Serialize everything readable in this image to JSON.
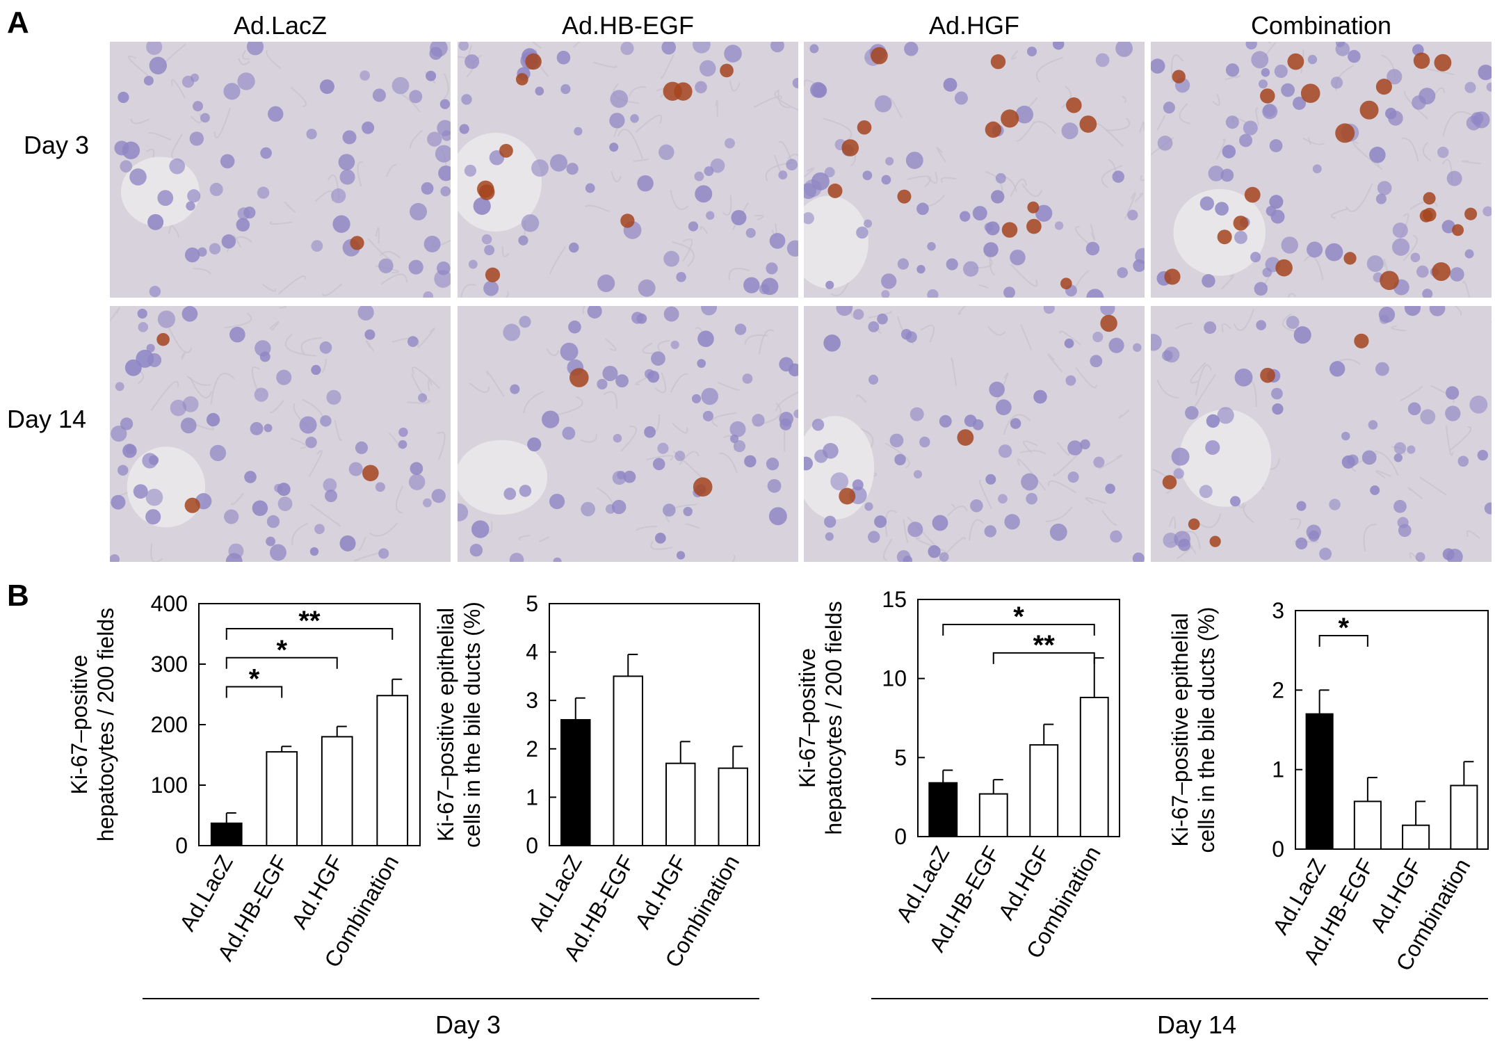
{
  "panel_a": {
    "letter": "A",
    "columns": [
      "Ad.LacZ",
      "Ad.HB-EGF",
      "Ad.HGF",
      "Combination"
    ],
    "rows": [
      "Day 3",
      "Day 14"
    ],
    "images": [
      {
        "name": "micrograph-day3-ad-lacz",
        "brown_nuclei": 1
      },
      {
        "name": "micrograph-day3-ad-hb-egf",
        "brown_nuclei": 10
      },
      {
        "name": "micrograph-day3-ad-hgf",
        "brown_nuclei": 14
      },
      {
        "name": "micrograph-day3-combination",
        "brown_nuclei": 22
      },
      {
        "name": "micrograph-day14-ad-lacz",
        "brown_nuclei": 3
      },
      {
        "name": "micrograph-day14-ad-hb-egf",
        "brown_nuclei": 2
      },
      {
        "name": "micrograph-day14-ad-hgf",
        "brown_nuclei": 3
      },
      {
        "name": "micrograph-day14-combination",
        "brown_nuclei": 5
      }
    ],
    "colors": {
      "tissue": "#d8d2dc",
      "hematoxylin": "#8f86c4",
      "dab": "#a4451e"
    }
  },
  "panel_b": {
    "letter": "B",
    "group_labels": [
      "Day 3",
      "Day 14"
    ]
  },
  "chart_data": [
    {
      "type": "bar",
      "categories": [
        "Ad.LacZ",
        "Ad.HB-EGF",
        "Ad.HGF",
        "Combination"
      ],
      "ylabel_lines": [
        "Ki-67–positive",
        "hepatocytes / 200 fields"
      ],
      "ylim": [
        0,
        400
      ],
      "yticks": [
        "0",
        "100",
        "200",
        "300",
        "400"
      ],
      "values": [
        37,
        155,
        180,
        248
      ],
      "errors": [
        17,
        9,
        17,
        27
      ],
      "fills": [
        "#000000",
        "#ffffff",
        "#ffffff",
        "#ffffff"
      ],
      "significance": [
        {
          "from": 0,
          "to": 1,
          "label": "*",
          "level": 1
        },
        {
          "from": 0,
          "to": 2,
          "label": "*",
          "level": 2
        },
        {
          "from": 0,
          "to": 3,
          "label": "**",
          "level": 3
        }
      ]
    },
    {
      "type": "bar",
      "categories": [
        "Ad.LacZ",
        "Ad.HB-EGF",
        "Ad.HGF",
        "Combination"
      ],
      "ylabel_lines": [
        "Ki-67–positive epithelial",
        "cells in the bile ducts (%)"
      ],
      "ylim": [
        0,
        5
      ],
      "yticks": [
        "0",
        "1",
        "2",
        "3",
        "4",
        "5"
      ],
      "values": [
        2.6,
        3.5,
        1.7,
        1.6
      ],
      "errors": [
        0.45,
        0.45,
        0.45,
        0.45
      ],
      "fills": [
        "#000000",
        "#ffffff",
        "#ffffff",
        "#ffffff"
      ],
      "significance": []
    },
    {
      "type": "bar",
      "categories": [
        "Ad.LacZ",
        "Ad.HB-EGF",
        "Ad.HGF",
        "Combination"
      ],
      "ylabel_lines": [
        "Ki-67–positive",
        "hepatocytes / 200 fields"
      ],
      "ylim": [
        0,
        15
      ],
      "yticks": [
        "0",
        "5",
        "10",
        "15"
      ],
      "values": [
        3.4,
        2.7,
        5.8,
        8.8
      ],
      "errors": [
        0.8,
        0.9,
        1.3,
        2.5
      ],
      "fills": [
        "#000000",
        "#ffffff",
        "#ffffff",
        "#ffffff"
      ],
      "significance": [
        {
          "from": 0,
          "to": 3,
          "label": "*",
          "level": 2
        },
        {
          "from": 1,
          "to": 3,
          "label": "**",
          "level": 1
        }
      ]
    },
    {
      "type": "bar",
      "categories": [
        "Ad.LacZ",
        "Ad.HB-EGF",
        "Ad.HGF",
        "Combination"
      ],
      "ylabel_lines": [
        "Ki-67–positive epithelial",
        "cells in the bile ducts (%)"
      ],
      "ylim": [
        0,
        3
      ],
      "yticks": [
        "0",
        "1",
        "2",
        "3"
      ],
      "values": [
        1.7,
        0.6,
        0.3,
        0.8
      ],
      "errors": [
        0.3,
        0.3,
        0.3,
        0.3
      ],
      "fills": [
        "#000000",
        "#ffffff",
        "#ffffff",
        "#ffffff"
      ],
      "significance": [
        {
          "from": 0,
          "to": 1,
          "label": "*",
          "level": 1
        }
      ]
    }
  ]
}
